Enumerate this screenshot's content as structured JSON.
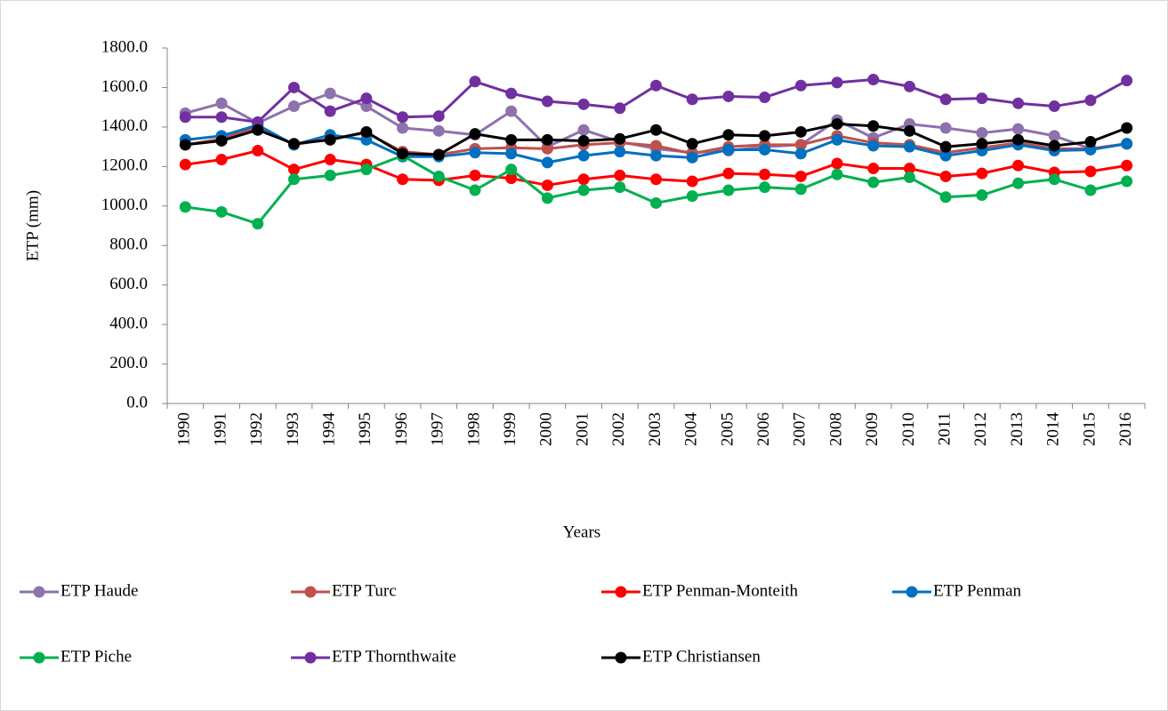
{
  "chart_data": {
    "type": "line",
    "x_label": "Years",
    "y_label": "ETP (mm)",
    "categories": [
      "1990",
      "1991",
      "1992",
      "1993",
      "1994",
      "1995",
      "1996",
      "1997",
      "1998",
      "1999",
      "2000",
      "2001",
      "2002",
      "2003",
      "2004",
      "2005",
      "2006",
      "2007",
      "2008",
      "2009",
      "2010",
      "2011",
      "2012",
      "2013",
      "2014",
      "2015",
      "2016"
    ],
    "ylim": [
      0,
      1800
    ],
    "yticks": [
      {
        "value": 0,
        "label": "0.0"
      },
      {
        "value": 200,
        "label": "200.0"
      },
      {
        "value": 400,
        "label": "400.0"
      },
      {
        "value": 600,
        "label": "600.0"
      },
      {
        "value": 800,
        "label": "800.0"
      },
      {
        "value": 1000,
        "label": "1000.0"
      },
      {
        "value": 1200,
        "label": "1200.0"
      },
      {
        "value": 1400,
        "label": "1400.0"
      },
      {
        "value": 1600,
        "label": "1600.0"
      },
      {
        "value": 1800,
        "label": "1800.0"
      }
    ],
    "grid": false,
    "legend": "bottom",
    "series": [
      {
        "name": "ETP Haude",
        "color": "#8d72ad",
        "values": [
          1470,
          1520,
          1420,
          1505,
          1570,
          1505,
          1395,
          1380,
          1360,
          1480,
          1300,
          1385,
          1325,
          1290,
          1270,
          1280,
          1300,
          1310,
          1435,
          1345,
          1415,
          1395,
          1370,
          1390,
          1355,
          1290,
          1315
        ]
      },
      {
        "name": "ETP Turc",
        "color": "#c0504d",
        "values": [
          1310,
          1340,
          1400,
          1310,
          1340,
          1370,
          1275,
          1260,
          1290,
          1295,
          1290,
          1310,
          1320,
          1305,
          1265,
          1300,
          1310,
          1310,
          1355,
          1320,
          1310,
          1270,
          1295,
          1320,
          1290,
          1290,
          1315
        ]
      },
      {
        "name": "ETP Penman-Monteith",
        "color": "#ff0000",
        "values": [
          1210,
          1235,
          1280,
          1185,
          1235,
          1210,
          1135,
          1130,
          1155,
          1140,
          1105,
          1135,
          1155,
          1135,
          1125,
          1165,
          1160,
          1150,
          1215,
          1190,
          1190,
          1150,
          1165,
          1205,
          1170,
          1175,
          1205
        ]
      },
      {
        "name": "ETP Penman",
        "color": "#0070c0",
        "values": [
          1335,
          1355,
          1410,
          1310,
          1360,
          1335,
          1250,
          1250,
          1270,
          1265,
          1220,
          1255,
          1275,
          1255,
          1245,
          1285,
          1285,
          1265,
          1335,
          1305,
          1300,
          1255,
          1280,
          1310,
          1280,
          1285,
          1315
        ]
      },
      {
        "name": "ETP Piche",
        "color": "#00b050",
        "values": [
          995,
          970,
          910,
          1135,
          1155,
          1185,
          1255,
          1150,
          1080,
          1185,
          1040,
          1080,
          1095,
          1015,
          1050,
          1080,
          1095,
          1085,
          1160,
          1120,
          1145,
          1045,
          1055,
          1115,
          1135,
          1080,
          1125
        ]
      },
      {
        "name": "ETP Thornthwaite",
        "color": "#7030a0",
        "values": [
          1450,
          1450,
          1425,
          1600,
          1480,
          1545,
          1450,
          1455,
          1630,
          1570,
          1530,
          1515,
          1495,
          1610,
          1540,
          1555,
          1550,
          1610,
          1625,
          1640,
          1605,
          1540,
          1545,
          1520,
          1505,
          1535,
          1635
        ]
      },
      {
        "name": "ETP Christiansen",
        "color": "#000000",
        "values": [
          1310,
          1330,
          1385,
          1315,
          1335,
          1375,
          1265,
          1260,
          1365,
          1335,
          1335,
          1330,
          1340,
          1385,
          1315,
          1360,
          1355,
          1375,
          1415,
          1405,
          1380,
          1300,
          1315,
          1335,
          1305,
          1325,
          1395
        ]
      }
    ]
  }
}
